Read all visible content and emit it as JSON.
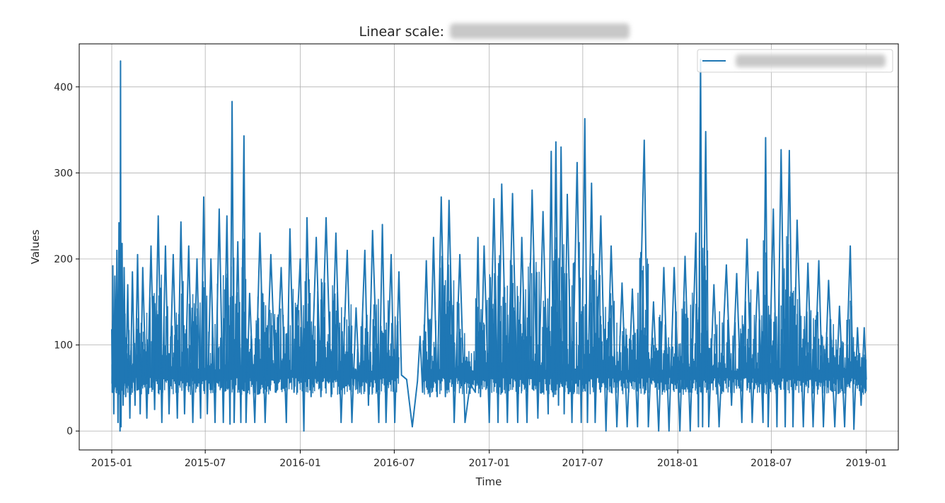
{
  "chart_data": {
    "type": "line",
    "title": "Linear scale:",
    "xlabel": "Time",
    "ylabel": "Values",
    "x_tick_labels": [
      "2015-01",
      "2015-07",
      "2016-01",
      "2016-07",
      "2017-01",
      "2017-07",
      "2018-01",
      "2018-07",
      "2019-01"
    ],
    "y_tick_labels": [
      "0",
      "100",
      "200",
      "300",
      "400"
    ],
    "y_ticks": [
      0,
      100,
      200,
      300,
      400
    ],
    "xlim": [
      "2014-10-30",
      "2019-03-04"
    ],
    "ylim": [
      -22,
      450
    ],
    "grid": true,
    "legend": "top-right",
    "line_color": "#1f77b4",
    "series": [
      {
        "points": [
          [
            "2015-01-01",
            118
          ],
          [
            "2015-01-02",
            45
          ],
          [
            "2015-01-03",
            192
          ],
          [
            "2015-01-05",
            20
          ],
          [
            "2015-01-07",
            180
          ],
          [
            "2015-01-09",
            60
          ],
          [
            "2015-01-11",
            210
          ],
          [
            "2015-01-13",
            10
          ],
          [
            "2015-01-15",
            242
          ],
          [
            "2015-01-17",
            0
          ],
          [
            "2015-01-18",
            430
          ],
          [
            "2015-01-19",
            5
          ],
          [
            "2015-01-21",
            218
          ],
          [
            "2015-01-23",
            30
          ],
          [
            "2015-01-25",
            190
          ],
          [
            "2015-01-28",
            40
          ],
          [
            "2015-02-01",
            170
          ],
          [
            "2015-02-05",
            15
          ],
          [
            "2015-02-10",
            185
          ],
          [
            "2015-02-15",
            30
          ],
          [
            "2015-02-20",
            205
          ],
          [
            "2015-02-25",
            20
          ],
          [
            "2015-03-02",
            190
          ],
          [
            "2015-03-10",
            15
          ],
          [
            "2015-03-18",
            215
          ],
          [
            "2015-03-25",
            25
          ],
          [
            "2015-04-01",
            250
          ],
          [
            "2015-04-08",
            10
          ],
          [
            "2015-04-15",
            215
          ],
          [
            "2015-04-22",
            20
          ],
          [
            "2015-04-30",
            205
          ],
          [
            "2015-05-08",
            15
          ],
          [
            "2015-05-15",
            243
          ],
          [
            "2015-05-22",
            20
          ],
          [
            "2015-05-30",
            215
          ],
          [
            "2015-06-07",
            10
          ],
          [
            "2015-06-15",
            200
          ],
          [
            "2015-06-22",
            15
          ],
          [
            "2015-06-28",
            272
          ],
          [
            "2015-07-05",
            20
          ],
          [
            "2015-07-12",
            200
          ],
          [
            "2015-07-20",
            10
          ],
          [
            "2015-07-28",
            258
          ],
          [
            "2015-08-05",
            10
          ],
          [
            "2015-08-12",
            250
          ],
          [
            "2015-08-18",
            8
          ],
          [
            "2015-08-22",
            383
          ],
          [
            "2015-08-26",
            10
          ],
          [
            "2015-09-02",
            220
          ],
          [
            "2015-09-08",
            10
          ],
          [
            "2015-09-14",
            343
          ],
          [
            "2015-09-18",
            10
          ],
          [
            "2015-09-25",
            160
          ],
          [
            "2015-10-05",
            10
          ],
          [
            "2015-10-15",
            230
          ],
          [
            "2015-10-25",
            10
          ],
          [
            "2015-11-05",
            205
          ],
          [
            "2015-11-15",
            45
          ],
          [
            "2015-11-25",
            190
          ],
          [
            "2015-12-05",
            10
          ],
          [
            "2015-12-12",
            235
          ],
          [
            "2015-12-20",
            45
          ],
          [
            "2016-01-01",
            200
          ],
          [
            "2016-01-08",
            0
          ],
          [
            "2016-01-14",
            248
          ],
          [
            "2016-01-22",
            40
          ],
          [
            "2016-02-01",
            225
          ],
          [
            "2016-02-10",
            40
          ],
          [
            "2016-02-20",
            248
          ],
          [
            "2016-03-01",
            40
          ],
          [
            "2016-03-10",
            230
          ],
          [
            "2016-03-20",
            10
          ],
          [
            "2016-04-01",
            210
          ],
          [
            "2016-04-10",
            10
          ],
          [
            "2016-04-18",
            143
          ],
          [
            "2016-04-25",
            45
          ],
          [
            "2016-05-05",
            210
          ],
          [
            "2016-05-12",
            30
          ],
          [
            "2016-05-20",
            233
          ],
          [
            "2016-06-01",
            10
          ],
          [
            "2016-06-08",
            240
          ],
          [
            "2016-06-15",
            10
          ],
          [
            "2016-06-25",
            205
          ],
          [
            "2016-07-02",
            10
          ],
          [
            "2016-07-10",
            185
          ],
          [
            "2016-07-15",
            65
          ],
          [
            "2016-07-25",
            60
          ],
          [
            "2016-08-05",
            5
          ],
          [
            "2016-08-15",
            58
          ],
          [
            "2016-08-20",
            110
          ],
          [
            "2016-08-25",
            45
          ],
          [
            "2016-09-01",
            198
          ],
          [
            "2016-09-08",
            40
          ],
          [
            "2016-09-15",
            225
          ],
          [
            "2016-09-22",
            40
          ],
          [
            "2016-09-30",
            272
          ],
          [
            "2016-10-08",
            40
          ],
          [
            "2016-10-15",
            268
          ],
          [
            "2016-10-25",
            10
          ],
          [
            "2016-11-05",
            205
          ],
          [
            "2016-11-15",
            10
          ],
          [
            "2016-11-25",
            55
          ],
          [
            "2016-12-05",
            45
          ],
          [
            "2016-12-10",
            225
          ],
          [
            "2016-12-15",
            40
          ],
          [
            "2016-12-22",
            215
          ],
          [
            "2017-01-01",
            10
          ],
          [
            "2017-01-10",
            270
          ],
          [
            "2017-01-18",
            10
          ],
          [
            "2017-01-25",
            287
          ],
          [
            "2017-02-05",
            10
          ],
          [
            "2017-02-15",
            276
          ],
          [
            "2017-02-25",
            10
          ],
          [
            "2017-03-05",
            225
          ],
          [
            "2017-03-15",
            10
          ],
          [
            "2017-03-25",
            280
          ],
          [
            "2017-04-05",
            15
          ],
          [
            "2017-04-15",
            255
          ],
          [
            "2017-04-25",
            20
          ],
          [
            "2017-05-01",
            325
          ],
          [
            "2017-05-05",
            40
          ],
          [
            "2017-05-10",
            336
          ],
          [
            "2017-05-15",
            30
          ],
          [
            "2017-05-20",
            330
          ],
          [
            "2017-05-26",
            20
          ],
          [
            "2017-06-01",
            275
          ],
          [
            "2017-06-10",
            10
          ],
          [
            "2017-06-20",
            312
          ],
          [
            "2017-06-28",
            10
          ],
          [
            "2017-07-05",
            363
          ],
          [
            "2017-07-10",
            10
          ],
          [
            "2017-07-18",
            288
          ],
          [
            "2017-07-25",
            10
          ],
          [
            "2017-08-05",
            250
          ],
          [
            "2017-08-15",
            0
          ],
          [
            "2017-08-25",
            215
          ],
          [
            "2017-09-05",
            5
          ],
          [
            "2017-09-15",
            172
          ],
          [
            "2017-09-25",
            5
          ],
          [
            "2017-10-05",
            165
          ],
          [
            "2017-10-15",
            5
          ],
          [
            "2017-10-28",
            338
          ],
          [
            "2017-11-05",
            5
          ],
          [
            "2017-11-15",
            150
          ],
          [
            "2017-11-25",
            0
          ],
          [
            "2017-12-05",
            190
          ],
          [
            "2017-12-15",
            0
          ],
          [
            "2017-12-25",
            190
          ],
          [
            "2018-01-05",
            0
          ],
          [
            "2018-01-15",
            203
          ],
          [
            "2018-01-25",
            0
          ],
          [
            "2018-02-05",
            230
          ],
          [
            "2018-02-10",
            5
          ],
          [
            "2018-02-14",
            432
          ],
          [
            "2018-02-18",
            5
          ],
          [
            "2018-02-24",
            348
          ],
          [
            "2018-03-02",
            5
          ],
          [
            "2018-03-12",
            170
          ],
          [
            "2018-03-22",
            5
          ],
          [
            "2018-04-05",
            193
          ],
          [
            "2018-04-15",
            30
          ],
          [
            "2018-04-25",
            183
          ],
          [
            "2018-05-05",
            10
          ],
          [
            "2018-05-15",
            223
          ],
          [
            "2018-05-25",
            10
          ],
          [
            "2018-06-05",
            185
          ],
          [
            "2018-06-15",
            10
          ],
          [
            "2018-06-20",
            341
          ],
          [
            "2018-06-25",
            5
          ],
          [
            "2018-07-05",
            258
          ],
          [
            "2018-07-12",
            5
          ],
          [
            "2018-07-20",
            327
          ],
          [
            "2018-07-28",
            5
          ],
          [
            "2018-08-05",
            326
          ],
          [
            "2018-08-12",
            5
          ],
          [
            "2018-08-20",
            245
          ],
          [
            "2018-09-01",
            5
          ],
          [
            "2018-09-10",
            195
          ],
          [
            "2018-09-20",
            5
          ],
          [
            "2018-10-01",
            198
          ],
          [
            "2018-10-10",
            5
          ],
          [
            "2018-10-20",
            175
          ],
          [
            "2018-11-01",
            5
          ],
          [
            "2018-11-10",
            145
          ],
          [
            "2018-11-20",
            5
          ],
          [
            "2018-12-01",
            215
          ],
          [
            "2018-12-08",
            2
          ],
          [
            "2018-12-15",
            120
          ],
          [
            "2018-12-22",
            30
          ],
          [
            "2018-12-28",
            120
          ],
          [
            "2019-01-01",
            60
          ]
        ]
      }
    ]
  }
}
